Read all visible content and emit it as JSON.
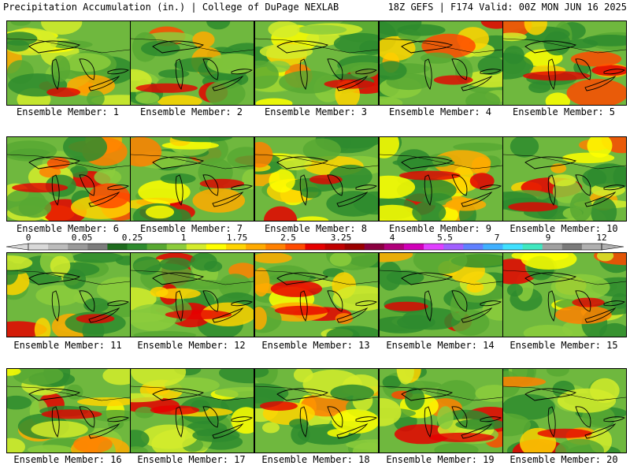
{
  "header": {
    "left": "Precipitation Accumulation (in.) | College of DuPage NEXLAB",
    "right": "18Z GEFS | F174 Valid: 00Z MON JUN 16 2025"
  },
  "legend": {
    "ticks": [
      "0",
      "0.05",
      "0.25",
      "1",
      "1.75",
      "2.5",
      "3.25",
      "4",
      "5.5",
      "7",
      "9",
      "12"
    ],
    "colors": [
      "#d9d9d9",
      "#bcbcbc",
      "#9a9a9a",
      "#7c7c7c",
      "#1e6b1e",
      "#2e8b2e",
      "#58a832",
      "#8ccc3c",
      "#d4ec2c",
      "#ffff00",
      "#ffd400",
      "#ffaa00",
      "#ff8000",
      "#ff4a00",
      "#e60000",
      "#c00000",
      "#9a0000",
      "#8a0040",
      "#b0007a",
      "#d000b8",
      "#e040ff",
      "#a060ff",
      "#6080ff",
      "#40b0ff",
      "#40e0ff",
      "#40e8c0",
      "#a0a0a0",
      "#7a7a7a",
      "#b0b0b0"
    ]
  },
  "panels": [
    {
      "label": "Ensemble Member: 1"
    },
    {
      "label": "Ensemble Member: 2"
    },
    {
      "label": "Ensemble Member: 3"
    },
    {
      "label": "Ensemble Member: 4"
    },
    {
      "label": "Ensemble Member: 5"
    },
    {
      "label": "Ensemble Member: 6"
    },
    {
      "label": "Ensemble Member: 7"
    },
    {
      "label": "Ensemble Member: 8"
    },
    {
      "label": "Ensemble Member: 9"
    },
    {
      "label": "Ensemble Member: 10"
    },
    {
      "label": "Ensemble Member: 11"
    },
    {
      "label": "Ensemble Member: 12"
    },
    {
      "label": "Ensemble Member: 13"
    },
    {
      "label": "Ensemble Member: 14"
    },
    {
      "label": "Ensemble Member: 15"
    },
    {
      "label": "Ensemble Member: 16"
    },
    {
      "label": "Ensemble Member: 17"
    },
    {
      "label": "Ensemble Member: 18"
    },
    {
      "label": "Ensemble Member: 19"
    },
    {
      "label": "Ensemble Member: 20"
    }
  ]
}
